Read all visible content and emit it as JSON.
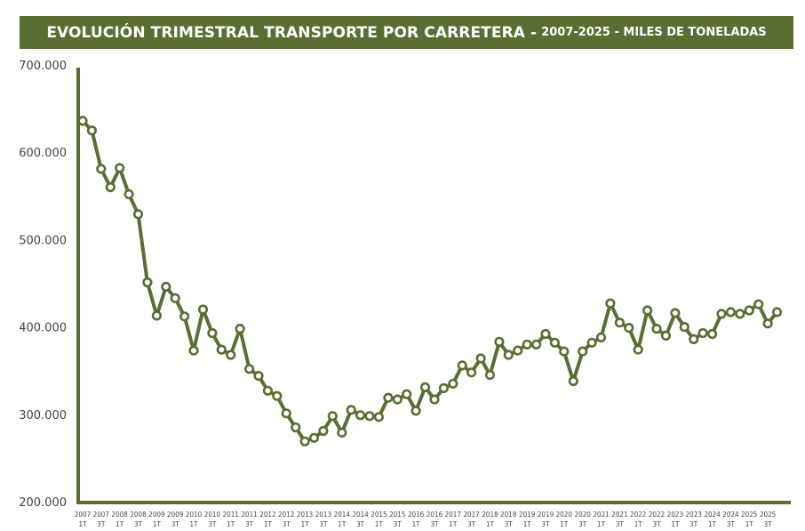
{
  "chart_data": {
    "type": "line",
    "title": "EVOLUCIÓN TRIMESTRAL TRANSPORTE POR CARRETERA -",
    "subtitle": "2007-2025 - MILES DE TONELADAS",
    "xlabel": "",
    "ylabel": "",
    "ylim": [
      200000,
      700000
    ],
    "yticks": [
      "200.000",
      "300.000",
      "400.000",
      "500.000",
      "600.000",
      "700.000"
    ],
    "ytick_values": [
      200000,
      300000,
      400000,
      500000,
      600000,
      700000
    ],
    "grid": false,
    "line_color": "#5a6e33",
    "x_labels": [
      {
        "index": 0,
        "year": "2007",
        "quarter": "1T"
      },
      {
        "index": 2,
        "year": "2007",
        "quarter": "3T"
      },
      {
        "index": 4,
        "year": "2008",
        "quarter": "1T"
      },
      {
        "index": 6,
        "year": "2008",
        "quarter": "3T"
      },
      {
        "index": 8,
        "year": "2009",
        "quarter": "1T"
      },
      {
        "index": 10,
        "year": "2009",
        "quarter": "3T"
      },
      {
        "index": 12,
        "year": "2010",
        "quarter": "1T"
      },
      {
        "index": 14,
        "year": "2010",
        "quarter": "3T"
      },
      {
        "index": 16,
        "year": "2011",
        "quarter": "1T"
      },
      {
        "index": 18,
        "year": "2011",
        "quarter": "3T"
      },
      {
        "index": 20,
        "year": "2012",
        "quarter": "1T"
      },
      {
        "index": 22,
        "year": "2012",
        "quarter": "3T"
      },
      {
        "index": 24,
        "year": "2013",
        "quarter": "1T"
      },
      {
        "index": 26,
        "year": "2013",
        "quarter": "3T"
      },
      {
        "index": 28,
        "year": "2014",
        "quarter": "1T"
      },
      {
        "index": 30,
        "year": "2014",
        "quarter": "3T"
      },
      {
        "index": 32,
        "year": "2015",
        "quarter": "1T"
      },
      {
        "index": 34,
        "year": "2015",
        "quarter": "3T"
      },
      {
        "index": 36,
        "year": "2016",
        "quarter": "1T"
      },
      {
        "index": 38,
        "year": "2016",
        "quarter": "3T"
      },
      {
        "index": 40,
        "year": "2017",
        "quarter": "1T"
      },
      {
        "index": 42,
        "year": "2017",
        "quarter": "3T"
      },
      {
        "index": 44,
        "year": "2018",
        "quarter": "1T"
      },
      {
        "index": 46,
        "year": "2018",
        "quarter": "3T"
      },
      {
        "index": 48,
        "year": "2019",
        "quarter": "1T"
      },
      {
        "index": 50,
        "year": "2019",
        "quarter": "3T"
      },
      {
        "index": 52,
        "year": "2020",
        "quarter": "1T"
      },
      {
        "index": 54,
        "year": "2020",
        "quarter": "3T"
      },
      {
        "index": 56,
        "year": "2021",
        "quarter": "1T"
      },
      {
        "index": 58,
        "year": "2021",
        "quarter": "3T"
      },
      {
        "index": 60,
        "year": "2022",
        "quarter": "1T"
      },
      {
        "index": 62,
        "year": "2022",
        "quarter": "3T"
      },
      {
        "index": 64,
        "year": "2023",
        "quarter": "1T"
      },
      {
        "index": 66,
        "year": "2023",
        "quarter": "3T"
      },
      {
        "index": 68,
        "year": "2024",
        "quarter": "1T"
      },
      {
        "index": 70,
        "year": "2024",
        "quarter": "3T"
      },
      {
        "index": 72,
        "year": "2025",
        "quarter": "1T"
      },
      {
        "index": 74,
        "year": "2025",
        "quarter": "3T"
      }
    ],
    "series": [
      {
        "values": [
          637000,
          626000,
          582000,
          561000,
          583000,
          553000,
          530000,
          452000,
          414000,
          447000,
          434000,
          413000,
          374000,
          421000,
          394000,
          375000,
          369000,
          399000,
          353000,
          345000,
          328000,
          322000,
          302000,
          286000,
          270000,
          274000,
          282000,
          299000,
          280000,
          306000,
          300000,
          299000,
          298000,
          320000,
          318000,
          324000,
          305000,
          332000,
          318000,
          331000,
          336000,
          357000,
          349000,
          365000,
          346000,
          384000,
          369000,
          374000,
          381000,
          381000,
          393000,
          383000,
          373000,
          339000,
          373000,
          383000,
          389000,
          428000,
          406000,
          400000,
          375000,
          420000,
          399000,
          391000,
          417000,
          401000,
          387000,
          394000,
          393000,
          416000,
          418000,
          416000,
          420000,
          427000,
          405000,
          418000
        ]
      }
    ]
  }
}
